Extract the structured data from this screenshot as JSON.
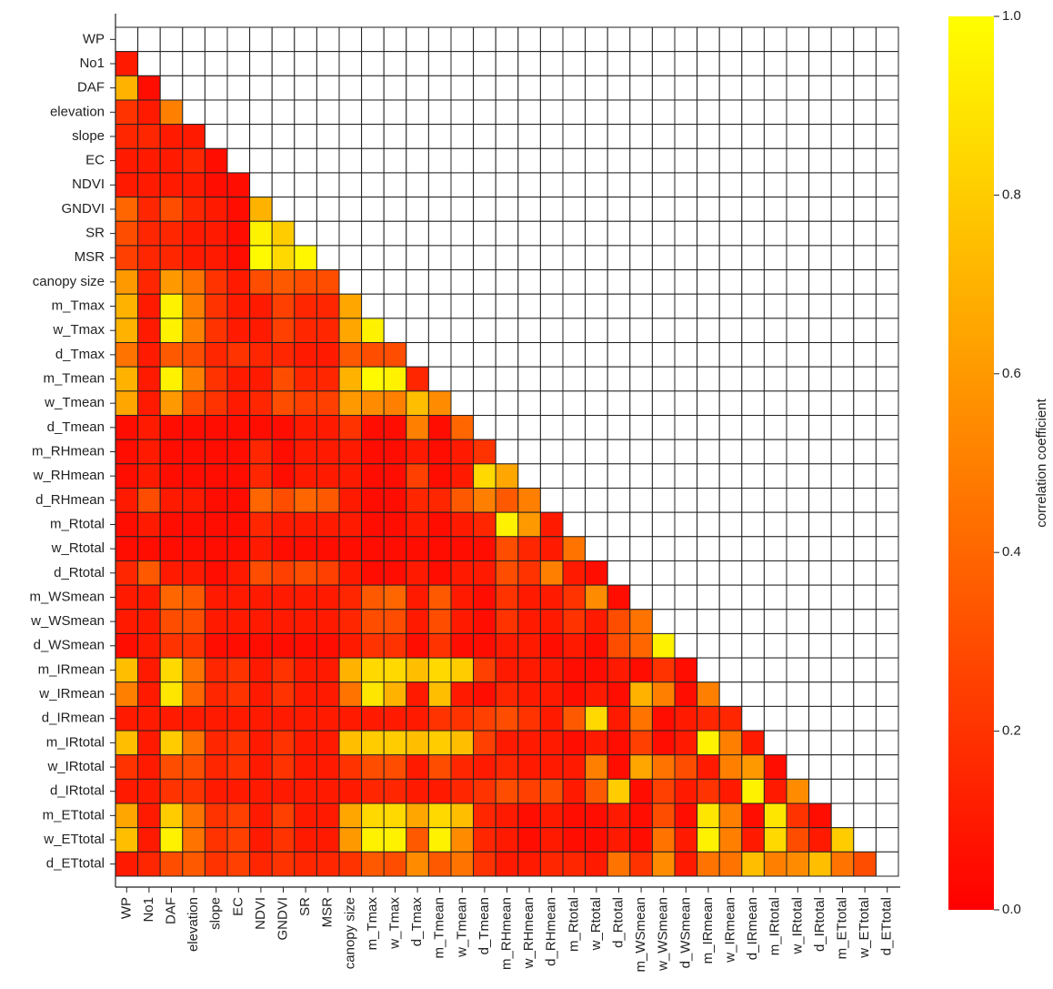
{
  "chart_data": {
    "type": "heatmap",
    "variables": [
      "WP",
      "No1",
      "DAF",
      "elevation",
      "slope",
      "EC",
      "NDVI",
      "GNDVI",
      "SR",
      "MSR",
      "canopy size",
      "m_Tmax",
      "w_Tmax",
      "d_Tmax",
      "m_Tmean",
      "w_Tmean",
      "d_Tmean",
      "m_RHmean",
      "w_RHmean",
      "d_RHmean",
      "m_Rtotal",
      "w_Rtotal",
      "d_Rtotal",
      "m_WSmean",
      "w_WSmean",
      "d_WSmean",
      "m_IRmean",
      "w_IRmean",
      "d_IRmean",
      "m_IRtotal",
      "w_IRtotal",
      "d_IRtotal",
      "m_ETtotal",
      "w_ETtotal",
      "d_ETtotal"
    ],
    "matrix": [
      [],
      [
        0.1
      ],
      [
        0.7,
        0.05
      ],
      [
        0.2,
        0.1,
        0.5
      ],
      [
        0.15,
        0.15,
        0.1,
        0.1
      ],
      [
        0.1,
        0.1,
        0.1,
        0.15,
        0.05
      ],
      [
        0.1,
        0.1,
        0.1,
        0.1,
        0.05,
        0.05
      ],
      [
        0.4,
        0.15,
        0.3,
        0.15,
        0.1,
        0.05,
        0.7
      ],
      [
        0.3,
        0.15,
        0.15,
        0.1,
        0.1,
        0.05,
        0.95,
        0.8
      ],
      [
        0.25,
        0.15,
        0.15,
        0.1,
        0.1,
        0.05,
        0.98,
        0.85,
        0.97
      ],
      [
        0.6,
        0.15,
        0.6,
        0.45,
        0.2,
        0.1,
        0.3,
        0.35,
        0.3,
        0.3
      ],
      [
        0.7,
        0.1,
        0.95,
        0.5,
        0.2,
        0.1,
        0.1,
        0.25,
        0.15,
        0.15,
        0.65
      ],
      [
        0.7,
        0.1,
        0.95,
        0.5,
        0.2,
        0.1,
        0.1,
        0.25,
        0.15,
        0.15,
        0.65,
        0.95
      ],
      [
        0.45,
        0.1,
        0.35,
        0.3,
        0.15,
        0.2,
        0.15,
        0.15,
        0.1,
        0.1,
        0.35,
        0.3,
        0.3
      ],
      [
        0.7,
        0.1,
        0.95,
        0.5,
        0.2,
        0.1,
        0.1,
        0.3,
        0.15,
        0.15,
        0.7,
        0.98,
        0.95,
        0.15
      ],
      [
        0.65,
        0.1,
        0.6,
        0.3,
        0.2,
        0.1,
        0.15,
        0.3,
        0.25,
        0.25,
        0.6,
        0.55,
        0.5,
        0.75,
        0.55
      ],
      [
        0.05,
        0.1,
        0.05,
        0.05,
        0.05,
        0.05,
        0.05,
        0.05,
        0.1,
        0.1,
        0.2,
        0.05,
        0.05,
        0.5,
        0.05,
        0.4
      ],
      [
        0.05,
        0.1,
        0.05,
        0.05,
        0.05,
        0.05,
        0.15,
        0.05,
        0.1,
        0.1,
        0.1,
        0.05,
        0.05,
        0.1,
        0.05,
        0.1,
        0.2
      ],
      [
        0.05,
        0.1,
        0.05,
        0.05,
        0.05,
        0.05,
        0.15,
        0.05,
        0.1,
        0.1,
        0.1,
        0.05,
        0.05,
        0.25,
        0.05,
        0.1,
        0.85,
        0.65
      ],
      [
        0.1,
        0.3,
        0.1,
        0.1,
        0.05,
        0.05,
        0.4,
        0.3,
        0.4,
        0.35,
        0.1,
        0.05,
        0.05,
        0.15,
        0.15,
        0.35,
        0.5,
        0.35,
        0.5
      ],
      [
        0.05,
        0.1,
        0.05,
        0.05,
        0.05,
        0.05,
        0.15,
        0.1,
        0.1,
        0.1,
        0.1,
        0.05,
        0.05,
        0.1,
        0.05,
        0.1,
        0.15,
        0.95,
        0.6,
        0.1
      ],
      [
        0.05,
        0.05,
        0.05,
        0.05,
        0.05,
        0.05,
        0.1,
        0.05,
        0.05,
        0.05,
        0.05,
        0.05,
        0.05,
        0.05,
        0.05,
        0.05,
        0.05,
        0.3,
        0.15,
        0.1,
        0.45
      ],
      [
        0.15,
        0.35,
        0.1,
        0.1,
        0.05,
        0.1,
        0.3,
        0.25,
        0.3,
        0.25,
        0.1,
        0.05,
        0.05,
        0.1,
        0.05,
        0.1,
        0.1,
        0.3,
        0.2,
        0.5,
        0.1,
        0.05
      ],
      [
        0.1,
        0.1,
        0.4,
        0.35,
        0.1,
        0.1,
        0.1,
        0.1,
        0.1,
        0.1,
        0.15,
        0.35,
        0.4,
        0.1,
        0.35,
        0.1,
        0.05,
        0.2,
        0.1,
        0.1,
        0.2,
        0.55,
        0.05
      ],
      [
        0.1,
        0.1,
        0.3,
        0.3,
        0.1,
        0.1,
        0.1,
        0.1,
        0.1,
        0.1,
        0.15,
        0.3,
        0.3,
        0.1,
        0.3,
        0.1,
        0.05,
        0.2,
        0.1,
        0.1,
        0.2,
        0.1,
        0.3,
        0.45
      ],
      [
        0.05,
        0.1,
        0.2,
        0.2,
        0.05,
        0.05,
        0.05,
        0.05,
        0.05,
        0.05,
        0.1,
        0.2,
        0.2,
        0.05,
        0.2,
        0.05,
        0.05,
        0.1,
        0.1,
        0.05,
        0.1,
        0.05,
        0.3,
        0.4,
        0.95
      ],
      [
        0.75,
        0.1,
        0.85,
        0.45,
        0.15,
        0.2,
        0.1,
        0.2,
        0.1,
        0.1,
        0.7,
        0.85,
        0.85,
        0.75,
        0.85,
        0.8,
        0.25,
        0.1,
        0.1,
        0.1,
        0.05,
        0.05,
        0.1,
        0.05,
        0.2,
        0.05
      ],
      [
        0.5,
        0.1,
        0.9,
        0.4,
        0.15,
        0.2,
        0.1,
        0.2,
        0.1,
        0.1,
        0.45,
        0.9,
        0.7,
        0.1,
        0.75,
        0.1,
        0.05,
        0.15,
        0.1,
        0.1,
        0.05,
        0.1,
        0.05,
        0.7,
        0.5,
        0.05,
        0.5
      ],
      [
        0.1,
        0.1,
        0.1,
        0.1,
        0.1,
        0.1,
        0.1,
        0.1,
        0.1,
        0.1,
        0.1,
        0.1,
        0.1,
        0.1,
        0.2,
        0.2,
        0.25,
        0.3,
        0.2,
        0.1,
        0.35,
        0.85,
        0.1,
        0.45,
        0.05,
        0.1,
        0.15,
        0.15
      ],
      [
        0.75,
        0.1,
        0.8,
        0.45,
        0.15,
        0.2,
        0.1,
        0.2,
        0.1,
        0.1,
        0.75,
        0.8,
        0.8,
        0.75,
        0.8,
        0.75,
        0.25,
        0.1,
        0.1,
        0.1,
        0.05,
        0.1,
        0.05,
        0.25,
        0.05,
        0.1,
        0.95,
        0.5,
        0.1
      ],
      [
        0.2,
        0.1,
        0.3,
        0.3,
        0.15,
        0.2,
        0.1,
        0.2,
        0.1,
        0.1,
        0.2,
        0.3,
        0.3,
        0.1,
        0.3,
        0.15,
        0.1,
        0.15,
        0.1,
        0.1,
        0.1,
        0.5,
        0.05,
        0.65,
        0.45,
        0.3,
        0.1,
        0.5,
        0.6,
        0.05
      ],
      [
        0.1,
        0.1,
        0.2,
        0.2,
        0.1,
        0.1,
        0.1,
        0.1,
        0.1,
        0.1,
        0.1,
        0.15,
        0.15,
        0.1,
        0.1,
        0.15,
        0.2,
        0.3,
        0.25,
        0.3,
        0.1,
        0.35,
        0.8,
        0.05,
        0.25,
        0.1,
        0.2,
        0.1,
        0.95,
        0.1,
        0.55
      ],
      [
        0.65,
        0.1,
        0.8,
        0.45,
        0.2,
        0.25,
        0.1,
        0.25,
        0.1,
        0.1,
        0.65,
        0.85,
        0.85,
        0.65,
        0.85,
        0.75,
        0.15,
        0.1,
        0.05,
        0.1,
        0.05,
        0.05,
        0.1,
        0.05,
        0.3,
        0.05,
        0.9,
        0.5,
        0.05,
        0.9,
        0.2,
        0.05
      ],
      [
        0.75,
        0.1,
        0.95,
        0.45,
        0.2,
        0.25,
        0.1,
        0.2,
        0.1,
        0.1,
        0.6,
        0.95,
        0.95,
        0.35,
        0.95,
        0.55,
        0.15,
        0.1,
        0.05,
        0.1,
        0.05,
        0.05,
        0.1,
        0.05,
        0.45,
        0.1,
        0.95,
        0.5,
        0.1,
        0.85,
        0.3,
        0.1,
        0.8
      ],
      [
        0.1,
        0.15,
        0.3,
        0.35,
        0.2,
        0.25,
        0.15,
        0.2,
        0.15,
        0.15,
        0.2,
        0.35,
        0.3,
        0.55,
        0.35,
        0.45,
        0.2,
        0.1,
        0.1,
        0.15,
        0.15,
        0.1,
        0.45,
        0.2,
        0.55,
        0.1,
        0.45,
        0.45,
        0.75,
        0.5,
        0.55,
        0.75,
        0.45,
        0.3
      ]
    ],
    "colormap": "autumn",
    "zlim": [
      0,
      1
    ],
    "zticks": [
      {
        "value": 0,
        "label": "0.0"
      },
      {
        "value": 0.2,
        "label": "0.2"
      },
      {
        "value": 0.4,
        "label": "0.4"
      },
      {
        "value": 0.6,
        "label": "0.6"
      },
      {
        "value": 0.8,
        "label": "0.8"
      },
      {
        "value": 1,
        "label": "1.0"
      }
    ],
    "colorbar_label": "correlation coefficient"
  }
}
